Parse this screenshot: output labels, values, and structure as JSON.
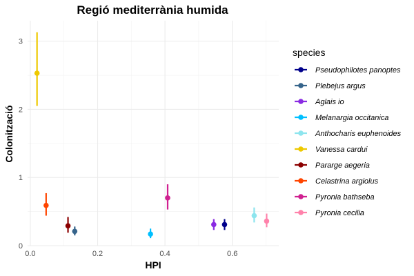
{
  "chart_data": {
    "type": "scatter",
    "title": "Regió mediterrània humida",
    "xlabel": "HPI",
    "ylabel": "Colonització",
    "xlim": [
      -0.008,
      0.738
    ],
    "ylim": [
      0,
      3.3
    ],
    "x_ticks": [
      0.0,
      0.2,
      0.4,
      0.6
    ],
    "x_tick_labels": [
      "0.0",
      "0.2",
      "0.4",
      "0.6"
    ],
    "y_ticks": [
      0,
      1,
      2,
      3
    ],
    "y_tick_labels": [
      "0",
      "1",
      "2",
      "3"
    ],
    "grid": true,
    "legend_title": "species",
    "legend_position": "right",
    "error_bars": true,
    "series": [
      {
        "name": "Pseudophilotes panoptes",
        "color": "#00008B",
        "x": 0.577,
        "y": 0.31,
        "ymin": 0.23,
        "ymax": 0.39
      },
      {
        "name": "Plebejus argus",
        "color": "#36648B",
        "x": 0.132,
        "y": 0.21,
        "ymin": 0.15,
        "ymax": 0.28
      },
      {
        "name": "Aglais io",
        "color": "#8A2BE2",
        "x": 0.545,
        "y": 0.31,
        "ymin": 0.23,
        "ymax": 0.39
      },
      {
        "name": "Melanargia occitanica",
        "color": "#00BFFF",
        "x": 0.357,
        "y": 0.17,
        "ymin": 0.11,
        "ymax": 0.25
      },
      {
        "name": "Anthocharis euphenoides",
        "color": "#8EE5EE",
        "x": 0.665,
        "y": 0.44,
        "ymin": 0.34,
        "ymax": 0.56
      },
      {
        "name": "Vanessa cardui",
        "color": "#EEC900",
        "x": 0.02,
        "y": 2.53,
        "ymin": 2.05,
        "ymax": 3.13
      },
      {
        "name": "Pararge aegeria",
        "color": "#8B0000",
        "x": 0.112,
        "y": 0.29,
        "ymin": 0.19,
        "ymax": 0.42
      },
      {
        "name": "Celastrina argiolus",
        "color": "#FF4500",
        "x": 0.047,
        "y": 0.59,
        "ymin": 0.44,
        "ymax": 0.77
      },
      {
        "name": "Pyronia bathseba",
        "color": "#D02090",
        "x": 0.408,
        "y": 0.7,
        "ymin": 0.53,
        "ymax": 0.9
      },
      {
        "name": "Pyronia cecilia",
        "color": "#FF82AB",
        "x": 0.702,
        "y": 0.36,
        "ymin": 0.27,
        "ymax": 0.47
      }
    ]
  }
}
